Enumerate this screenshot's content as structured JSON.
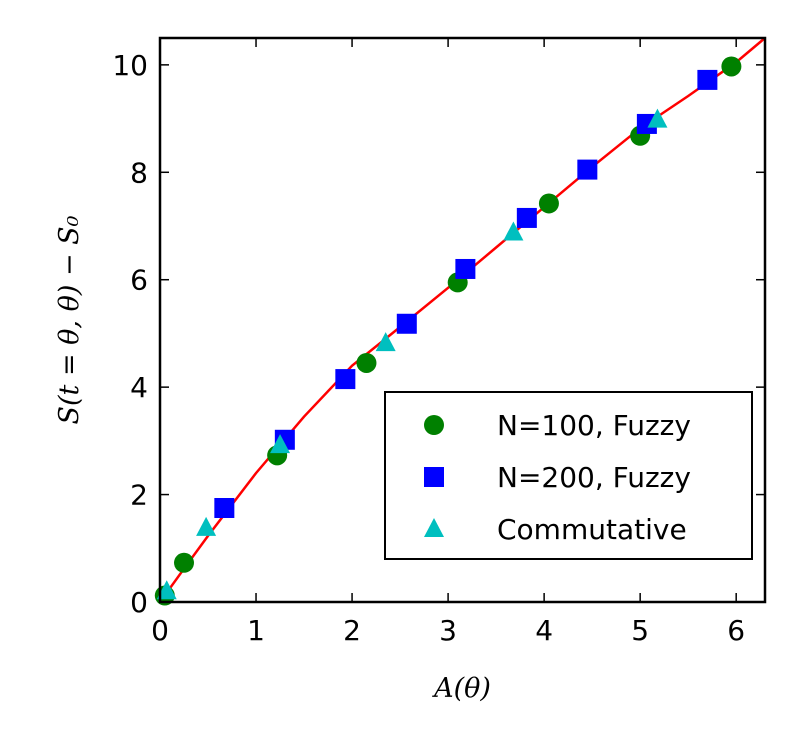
{
  "chart_data": {
    "type": "scatter",
    "xlabel": "A(θ)",
    "ylabel": "S(t = θ, θ) − S₀",
    "xlim": [
      0,
      6.3
    ],
    "ylim": [
      0,
      10.5
    ],
    "x_ticks": [
      0,
      1,
      2,
      3,
      4,
      5,
      6
    ],
    "y_ticks": [
      0,
      2,
      4,
      6,
      8,
      10
    ],
    "x_tick_labels": [
      "0",
      "1",
      "2",
      "3",
      "4",
      "5",
      "6"
    ],
    "y_tick_labels": [
      "0",
      "2",
      "4",
      "6",
      "8",
      "10"
    ],
    "grid": false,
    "legend_position": "lower-right",
    "fit_line": {
      "color": "#ff0000",
      "x": [
        0,
        0.25,
        0.5,
        1,
        1.5,
        2,
        2.5,
        3,
        3.5,
        4,
        4.5,
        5,
        5.5,
        6,
        6.3
      ],
      "y": [
        0,
        0.62,
        1.23,
        2.4,
        3.45,
        4.4,
        5.12,
        5.85,
        6.6,
        7.35,
        8.1,
        8.82,
        9.42,
        10.05,
        10.5
      ]
    },
    "series": [
      {
        "name": "N=100, Fuzzy",
        "marker": "circle",
        "color": "#008000",
        "x": [
          0.05,
          0.25,
          1.22,
          2.15,
          3.1,
          4.05,
          5.0,
          5.95
        ],
        "y": [
          0.12,
          0.73,
          2.73,
          4.45,
          5.95,
          7.42,
          8.68,
          9.97
        ]
      },
      {
        "name": "N=200, Fuzzy",
        "marker": "square",
        "color": "#0000ff",
        "x": [
          0.67,
          1.3,
          1.93,
          2.57,
          3.18,
          3.82,
          4.45,
          5.07,
          5.7
        ],
        "y": [
          1.75,
          3.02,
          4.15,
          5.18,
          6.2,
          7.15,
          8.05,
          8.9,
          9.72
        ]
      },
      {
        "name": "Commutative",
        "marker": "triangle",
        "color": "#00bfbf",
        "x": [
          0.07,
          0.48,
          1.25,
          2.35,
          3.68,
          5.18
        ],
        "y": [
          0.2,
          1.38,
          2.92,
          4.82,
          6.88,
          8.98
        ]
      }
    ]
  }
}
